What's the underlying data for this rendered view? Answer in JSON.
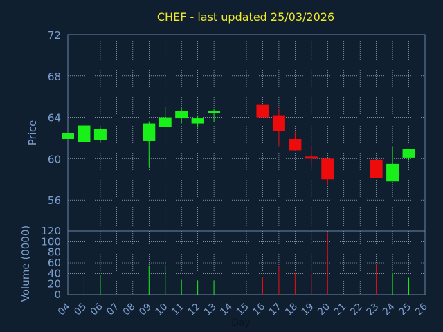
{
  "colors": {
    "background": "#0f1f30",
    "panel_border": "#6b86a6",
    "grid": "#c8d6e6",
    "text": "#7d9fd0",
    "title": "#f2ea28",
    "up": "#19f019",
    "down": "#ee0b0b",
    "axis_title": "#0a1420"
  },
  "chart_data": {
    "type": "candlestick",
    "title": "CHEF - last updated 25/03/2026",
    "price_panel": {
      "ylabel": "Price",
      "ylim": [
        53,
        72
      ],
      "yticks": [
        56,
        60,
        64,
        68,
        72
      ]
    },
    "volume_panel": {
      "ylabel": "Volume (0000)",
      "ylim": [
        0,
        120
      ],
      "yticks": [
        0,
        20,
        40,
        60,
        80,
        100,
        120
      ]
    },
    "xlabel": "Day",
    "x_tick_labels": [
      "04",
      "05",
      "06",
      "07",
      "08",
      "09",
      "10",
      "11",
      "12",
      "13",
      "14",
      "15",
      "16",
      "17",
      "18",
      "19",
      "20",
      "21",
      "22",
      "23",
      "24",
      "25",
      "26"
    ],
    "candles": [
      {
        "day": "04",
        "open": 61.9,
        "high": 62.5,
        "low": 61.9,
        "close": 62.5,
        "volume": 0
      },
      {
        "day": "05",
        "open": 61.6,
        "high": 63.4,
        "low": 61.6,
        "close": 63.2,
        "volume": 44
      },
      {
        "day": "06",
        "open": 61.8,
        "high": 63.0,
        "low": 61.6,
        "close": 62.9,
        "volume": 37
      },
      {
        "day": "09",
        "open": 61.7,
        "high": 63.6,
        "low": 59.2,
        "close": 63.4,
        "volume": 55
      },
      {
        "day": "10",
        "open": 63.1,
        "high": 65.0,
        "low": 63.1,
        "close": 64.0,
        "volume": 56
      },
      {
        "day": "11",
        "open": 63.9,
        "high": 64.9,
        "low": 63.4,
        "close": 64.6,
        "volume": 28
      },
      {
        "day": "12",
        "open": 63.4,
        "high": 64.2,
        "low": 63.0,
        "close": 63.9,
        "volume": 27
      },
      {
        "day": "13",
        "open": 64.4,
        "high": 64.8,
        "low": 63.5,
        "close": 64.6,
        "volume": 27
      },
      {
        "day": "16",
        "open": 65.2,
        "high": 65.2,
        "low": 64.0,
        "close": 64.0,
        "volume": 33
      },
      {
        "day": "17",
        "open": 64.2,
        "high": 64.8,
        "low": 61.2,
        "close": 62.7,
        "volume": 53
      },
      {
        "day": "18",
        "open": 61.9,
        "high": 62.6,
        "low": 60.7,
        "close": 60.8,
        "volume": 42
      },
      {
        "day": "19",
        "open": 60.2,
        "high": 61.3,
        "low": 59.4,
        "close": 60.0,
        "volume": 41
      },
      {
        "day": "20",
        "open": 60.0,
        "high": 60.0,
        "low": 57.4,
        "close": 58.0,
        "volume": 117
      },
      {
        "day": "23",
        "open": 59.9,
        "high": 59.9,
        "low": 58.1,
        "close": 58.1,
        "volume": 58
      },
      {
        "day": "24",
        "open": 57.8,
        "high": 61.2,
        "low": 57.8,
        "close": 59.5,
        "volume": 42
      },
      {
        "day": "25",
        "open": 60.1,
        "high": 60.9,
        "low": 59.8,
        "close": 60.9,
        "volume": 32
      }
    ],
    "grid": true
  }
}
